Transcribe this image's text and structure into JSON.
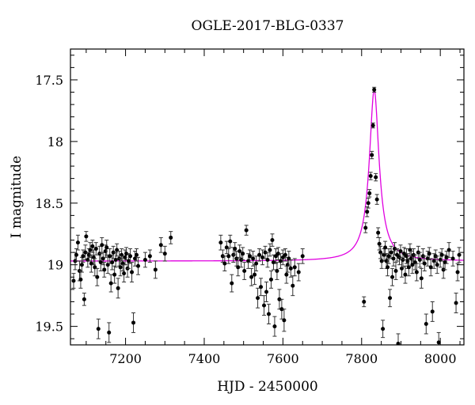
{
  "chart_data": {
    "type": "scatter",
    "title": "OGLE-2017-BLG-0337",
    "xlabel": "HJD - 2450000",
    "ylabel": "I magnitude",
    "xlim": [
      7060,
      8060
    ],
    "ylim": [
      19.65,
      17.25
    ],
    "y_inverted": true,
    "x_ticks": [
      7200,
      7400,
      7600,
      7800,
      8000
    ],
    "x_tick_labels": [
      "7200",
      "7400",
      "7600",
      "7800",
      "8000"
    ],
    "y_ticks": [
      17.5,
      18,
      18.5,
      19,
      19.5
    ],
    "y_tick_labels": [
      "17.5",
      "18",
      "18.5",
      "19",
      "19.5"
    ],
    "grid": false,
    "colors": {
      "points": "#000000",
      "model": "#e000e0"
    },
    "series": [
      {
        "type": "scatter_errorbar",
        "points": [
          [
            7068,
            19.13,
            0.06
          ],
          [
            7072,
            18.97,
            0.07
          ],
          [
            7075,
            18.92,
            0.05
          ],
          [
            7079,
            18.82,
            0.06
          ],
          [
            7083,
            19.05,
            0.08
          ],
          [
            7086,
            19.12,
            0.07
          ],
          [
            7089,
            19.0,
            0.06
          ],
          [
            7092,
            18.93,
            0.05
          ],
          [
            7095,
            19.28,
            0.05
          ],
          [
            7098,
            18.9,
            0.06
          ],
          [
            7100,
            18.77,
            0.04
          ],
          [
            7104,
            18.96,
            0.06
          ],
          [
            7107,
            18.92,
            0.05
          ],
          [
            7110,
            18.88,
            0.06
          ],
          [
            7113,
            18.99,
            0.07
          ],
          [
            7116,
            18.85,
            0.05
          ],
          [
            7119,
            18.94,
            0.06
          ],
          [
            7122,
            19.02,
            0.07
          ],
          [
            7125,
            18.87,
            0.05
          ],
          [
            7128,
            19.1,
            0.07
          ],
          [
            7131,
            19.52,
            0.08
          ],
          [
            7134,
            18.91,
            0.06
          ],
          [
            7137,
            18.98,
            0.07
          ],
          [
            7140,
            18.84,
            0.06
          ],
          [
            7143,
            18.95,
            0.05
          ],
          [
            7146,
            19.04,
            0.06
          ],
          [
            7149,
            18.89,
            0.05
          ],
          [
            7152,
            18.86,
            0.06
          ],
          [
            7155,
            19.0,
            0.07
          ],
          [
            7158,
            19.55,
            0.08
          ],
          [
            7160,
            18.93,
            0.06
          ],
          [
            7163,
            19.15,
            0.07
          ],
          [
            7166,
            18.98,
            0.06
          ],
          [
            7169,
            18.9,
            0.05
          ],
          [
            7172,
            19.08,
            0.07
          ],
          [
            7175,
            18.96,
            0.06
          ],
          [
            7178,
            18.88,
            0.05
          ],
          [
            7181,
            19.19,
            0.08
          ],
          [
            7184,
            18.95,
            0.06
          ],
          [
            7187,
            19.02,
            0.07
          ],
          [
            7190,
            18.92,
            0.05
          ],
          [
            7193,
            18.99,
            0.06
          ],
          [
            7196,
            19.07,
            0.07
          ],
          [
            7199,
            18.94,
            0.06
          ],
          [
            7202,
            18.91,
            0.05
          ],
          [
            7205,
            19.03,
            0.07
          ],
          [
            7208,
            18.97,
            0.06
          ],
          [
            7212,
            18.93,
            0.06
          ],
          [
            7216,
            19.06,
            0.08
          ],
          [
            7220,
            19.47,
            0.08
          ],
          [
            7224,
            18.95,
            0.06
          ],
          [
            7228,
            18.92,
            0.05
          ],
          [
            7232,
            19.01,
            0.07
          ],
          [
            7250,
            18.96,
            0.06
          ],
          [
            7262,
            18.93,
            0.05
          ],
          [
            7276,
            19.04,
            0.07
          ],
          [
            7290,
            18.84,
            0.06
          ],
          [
            7300,
            18.91,
            0.06
          ],
          [
            7315,
            18.78,
            0.05
          ],
          [
            7442,
            18.82,
            0.06
          ],
          [
            7447,
            18.93,
            0.05
          ],
          [
            7452,
            18.99,
            0.06
          ],
          [
            7457,
            18.86,
            0.05
          ],
          [
            7462,
            18.93,
            0.06
          ],
          [
            7466,
            18.81,
            0.05
          ],
          [
            7470,
            19.15,
            0.07
          ],
          [
            7474,
            18.92,
            0.06
          ],
          [
            7478,
            18.87,
            0.05
          ],
          [
            7482,
            18.95,
            0.06
          ],
          [
            7486,
            19.02,
            0.07
          ],
          [
            7490,
            18.89,
            0.05
          ],
          [
            7494,
            18.96,
            0.06
          ],
          [
            7498,
            18.91,
            0.05
          ],
          [
            7502,
            19.05,
            0.07
          ],
          [
            7507,
            18.72,
            0.04
          ],
          [
            7512,
            18.97,
            0.06
          ],
          [
            7516,
            18.93,
            0.05
          ],
          [
            7520,
            19.1,
            0.07
          ],
          [
            7524,
            18.95,
            0.06
          ],
          [
            7528,
            19.08,
            0.08
          ],
          [
            7532,
            18.99,
            0.06
          ],
          [
            7536,
            19.27,
            0.08
          ],
          [
            7540,
            18.92,
            0.05
          ],
          [
            7544,
            19.18,
            0.07
          ],
          [
            7548,
            18.94,
            0.06
          ],
          [
            7552,
            19.33,
            0.08
          ],
          [
            7555,
            18.9,
            0.05
          ],
          [
            7558,
            19.22,
            0.08
          ],
          [
            7561,
            18.96,
            0.06
          ],
          [
            7564,
            19.4,
            0.08
          ],
          [
            7567,
            18.88,
            0.05
          ],
          [
            7570,
            19.12,
            0.07
          ],
          [
            7573,
            18.8,
            0.05
          ],
          [
            7576,
            18.98,
            0.06
          ],
          [
            7579,
            19.5,
            0.08
          ],
          [
            7582,
            18.93,
            0.06
          ],
          [
            7585,
            19.05,
            0.07
          ],
          [
            7588,
            18.91,
            0.05
          ],
          [
            7591,
            19.28,
            0.08
          ],
          [
            7594,
            18.97,
            0.06
          ],
          [
            7597,
            19.36,
            0.08
          ],
          [
            7600,
            18.94,
            0.06
          ],
          [
            7603,
            19.45,
            0.09
          ],
          [
            7606,
            18.92,
            0.05
          ],
          [
            7609,
            19.08,
            0.07
          ],
          [
            7612,
            19.0,
            0.06
          ],
          [
            7615,
            18.95,
            0.06
          ],
          [
            7620,
            19.03,
            0.07
          ],
          [
            7625,
            19.17,
            0.08
          ],
          [
            7630,
            19.02,
            0.07
          ],
          [
            7640,
            19.06,
            0.07
          ],
          [
            7650,
            18.93,
            0.06
          ],
          [
            7806,
            19.3,
            0.04
          ],
          [
            7810,
            18.7,
            0.04
          ],
          [
            7814,
            18.57,
            0.04
          ],
          [
            7817,
            18.5,
            0.04
          ],
          [
            7820,
            18.42,
            0.03
          ],
          [
            7823,
            18.28,
            0.03
          ],
          [
            7826,
            18.11,
            0.03
          ],
          [
            7829,
            17.87,
            0.02
          ],
          [
            7832,
            17.58,
            0.02
          ],
          [
            7836,
            18.29,
            0.03
          ],
          [
            7839,
            18.47,
            0.04
          ],
          [
            7842,
            18.74,
            0.04
          ],
          [
            7845,
            18.83,
            0.05
          ],
          [
            7848,
            18.9,
            0.05
          ],
          [
            7851,
            18.97,
            0.06
          ],
          [
            7854,
            19.52,
            0.07
          ],
          [
            7857,
            18.92,
            0.05
          ],
          [
            7860,
            18.86,
            0.05
          ],
          [
            7863,
            18.97,
            0.06
          ],
          [
            7866,
            19.02,
            0.07
          ],
          [
            7869,
            18.93,
            0.06
          ],
          [
            7872,
            19.27,
            0.07
          ],
          [
            7875,
            18.9,
            0.05
          ],
          [
            7878,
            19.1,
            0.07
          ],
          [
            7881,
            18.95,
            0.06
          ],
          [
            7884,
            18.87,
            0.05
          ],
          [
            7887,
            19.05,
            0.07
          ],
          [
            7890,
            18.92,
            0.05
          ],
          [
            7893,
            19.64,
            0.08
          ],
          [
            7896,
            18.94,
            0.06
          ],
          [
            7899,
            18.89,
            0.05
          ],
          [
            7902,
            19.03,
            0.07
          ],
          [
            7905,
            18.96,
            0.06
          ],
          [
            7908,
            18.91,
            0.05
          ],
          [
            7911,
            19.08,
            0.07
          ],
          [
            7914,
            18.93,
            0.06
          ],
          [
            7917,
            18.97,
            0.06
          ],
          [
            7920,
            19.02,
            0.07
          ],
          [
            7923,
            18.88,
            0.05
          ],
          [
            7926,
            18.95,
            0.06
          ],
          [
            7929,
            19.0,
            0.07
          ],
          [
            7932,
            18.92,
            0.05
          ],
          [
            7936,
            18.98,
            0.06
          ],
          [
            7940,
            19.06,
            0.07
          ],
          [
            7944,
            18.9,
            0.05
          ],
          [
            7948,
            18.96,
            0.06
          ],
          [
            7952,
            19.11,
            0.08
          ],
          [
            7956,
            18.93,
            0.06
          ],
          [
            7960,
            18.99,
            0.06
          ],
          [
            7964,
            19.48,
            0.08
          ],
          [
            7968,
            18.95,
            0.06
          ],
          [
            7972,
            18.91,
            0.05
          ],
          [
            7976,
            19.02,
            0.07
          ],
          [
            7980,
            19.38,
            0.08
          ],
          [
            7984,
            18.97,
            0.06
          ],
          [
            7988,
            18.93,
            0.05
          ],
          [
            7992,
            19.0,
            0.07
          ],
          [
            7996,
            19.63,
            0.08
          ],
          [
            8000,
            18.96,
            0.06
          ],
          [
            8004,
            18.92,
            0.05
          ],
          [
            8008,
            19.04,
            0.07
          ],
          [
            8012,
            18.98,
            0.06
          ],
          [
            8016,
            18.94,
            0.05
          ],
          [
            8022,
            18.88,
            0.06
          ],
          [
            8032,
            18.95,
            0.06
          ],
          [
            8040,
            19.31,
            0.08
          ],
          [
            8044,
            19.06,
            0.07
          ],
          [
            8048,
            18.92,
            0.06
          ]
        ]
      },
      {
        "type": "model_curve",
        "baseline": 18.97,
        "peak_time": 7832,
        "peak_mag": 17.58,
        "timescale": 11
      }
    ]
  }
}
